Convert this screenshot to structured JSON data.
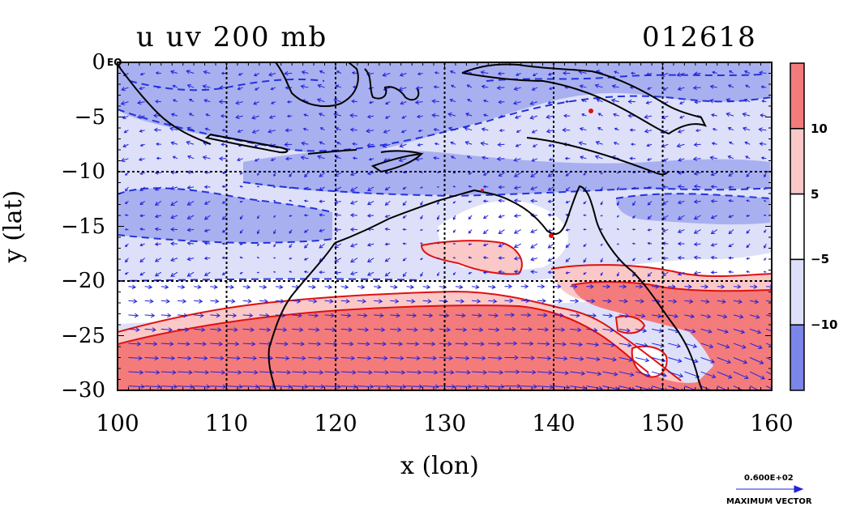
{
  "chart_data": {
    "type": "heatmap",
    "title_left": "u uv 200 mb",
    "title_right": "012618",
    "xlabel": "x (lon)",
    "ylabel": "y (lat)",
    "xlim": [
      100,
      160
    ],
    "ylim": [
      -30,
      0
    ],
    "x_ticks": [
      "100",
      "110",
      "120",
      "130",
      "140",
      "150",
      "160"
    ],
    "y_ticks": [
      "0",
      "−5",
      "−10",
      "−15",
      "−20",
      "−25",
      "−30"
    ],
    "y_tick_values": [
      0,
      -5,
      -10,
      -15,
      -20,
      -25,
      -30
    ],
    "x_tick_values": [
      100,
      110,
      120,
      130,
      140,
      150,
      160
    ],
    "eq_label": "EQ",
    "grid": true,
    "contour_levels": [
      -10,
      -5,
      5,
      10
    ],
    "colorbar": {
      "labels": [
        "10",
        "5",
        "−5",
        "−10"
      ],
      "colors": [
        "#f47b7b",
        "#fbc8c8",
        "#ffffff",
        "#dde0f8",
        "#7b86e8"
      ]
    },
    "max_vector_value": "0.600E+02",
    "max_vector_label": "MAXIMUM VECTOR",
    "shading_colors": {
      "strong_positive": "#f47b7b",
      "positive": "#fbc8c8",
      "neutral": "#ffffff",
      "negative": "#dde0f8",
      "strong_negative": "#a9b0f0"
    },
    "vector_color": "#2222dd",
    "contour_color": "#e01010"
  }
}
